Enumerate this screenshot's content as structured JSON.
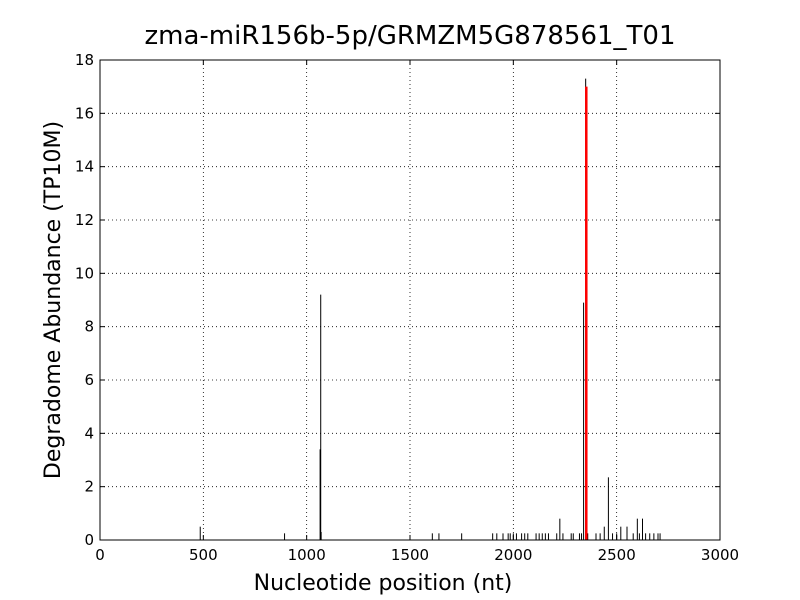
{
  "chart_data": {
    "type": "bar",
    "title": "zma-miR156b-5p/GRMZM5G878561_T01",
    "xlabel": "Nucleotide position (nt)",
    "ylabel": "Degradome Abundance (TP10M)",
    "xlim": [
      0,
      3000
    ],
    "xticks": [
      0,
      500,
      1000,
      1500,
      2000,
      2500,
      3000
    ],
    "ylim": [
      0,
      18
    ],
    "yticks": [
      0,
      2,
      4,
      6,
      8,
      10,
      12,
      14,
      16,
      18
    ],
    "grid": true,
    "series": [
      {
        "color": "#000000",
        "width": 1,
        "x": [
          485,
          893,
          1065,
          1068,
          1070,
          1608,
          1640,
          1750,
          1900,
          1920,
          1950,
          1975,
          1985,
          2000,
          2015,
          2040,
          2055,
          2070,
          2110,
          2125,
          2140,
          2155,
          2170,
          2210,
          2225,
          2240,
          2280,
          2290,
          2320,
          2330,
          2340,
          2350,
          2360,
          2400,
          2420,
          2440,
          2460,
          2480,
          2500,
          2520,
          2550,
          2580,
          2600,
          2610,
          2625,
          2640,
          2660,
          2680,
          2700,
          2710
        ],
        "values": [
          0.5,
          0.25,
          3.4,
          9.2,
          0.3,
          0.25,
          0.25,
          0.25,
          0.25,
          0.25,
          0.25,
          0.25,
          0.25,
          0.25,
          0.25,
          0.25,
          0.25,
          0.25,
          0.25,
          0.25,
          0.25,
          0.25,
          0.25,
          0.25,
          0.8,
          0.25,
          0.25,
          0.25,
          0.25,
          0.25,
          8.9,
          17.3,
          0.25,
          0.25,
          0.25,
          0.5,
          2.35,
          0.25,
          0.25,
          0.5,
          0.5,
          0.25,
          0.8,
          0.25,
          0.8,
          0.25,
          0.25,
          0.25,
          0.25,
          0.25
        ]
      },
      {
        "color": "#ff0000",
        "width": 2.5,
        "x": [
          2353
        ],
        "values": [
          17
        ]
      }
    ]
  }
}
